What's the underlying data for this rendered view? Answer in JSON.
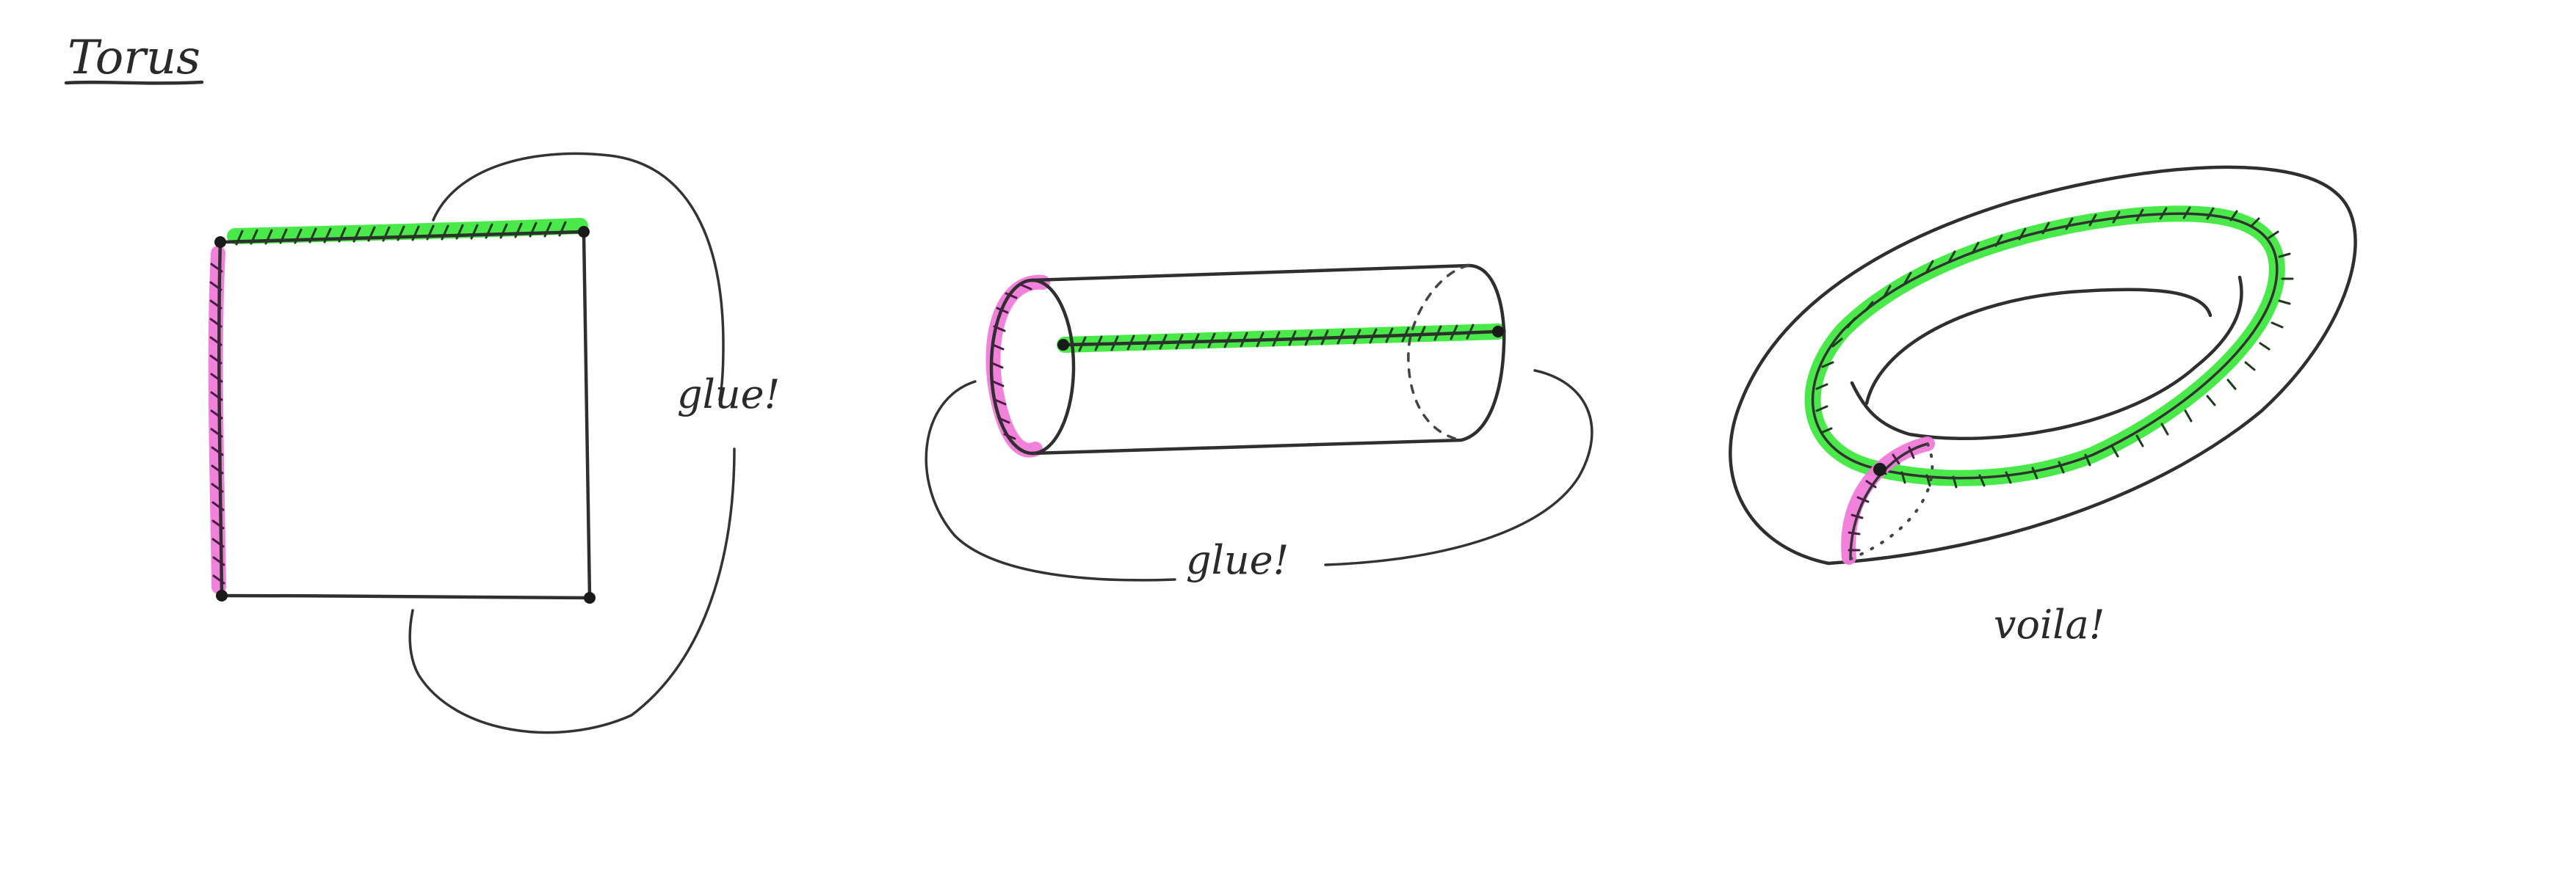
{
  "title": "Torus",
  "labels": {
    "glue_1": "glue!",
    "glue_2": "glue!",
    "voila": "voila!"
  },
  "colors": {
    "ink": "#2f2f2f",
    "green_highlight": "#3ee83e",
    "pink_highlight": "#f07ad8",
    "background": "#ffffff"
  },
  "figures": [
    "square-with-identified-edges",
    "cylinder",
    "torus"
  ]
}
